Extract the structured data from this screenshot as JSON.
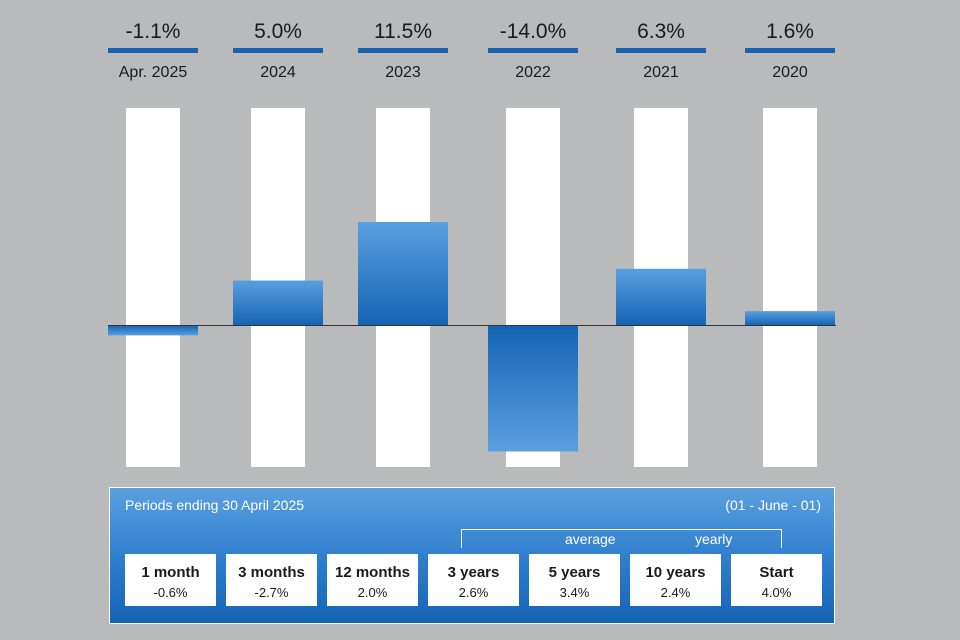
{
  "chart_data": {
    "type": "bar",
    "categories": [
      "Apr. 2025",
      "2024",
      "2023",
      "2022",
      "2021",
      "2020"
    ],
    "values": [
      -1.1,
      5.0,
      11.5,
      -14.0,
      6.3,
      1.6
    ],
    "value_labels": [
      "-1.1%",
      "5.0%",
      "11.5%",
      "-14.0%",
      "6.3%",
      "1.6%"
    ],
    "ylim": [
      -15,
      25
    ],
    "grid": false,
    "colors": {
      "bar_top": "#5aa0e0",
      "bar_bottom": "#1463b4",
      "underline": "#1a62b0",
      "column_bg": "#ffffff",
      "zero_line": "#333333"
    }
  },
  "periods_panel": {
    "title": "Periods ending 30 April 2025",
    "since_note": "(01 - June - 01)",
    "average_word": "average",
    "yearly_word": "yearly",
    "items": [
      {
        "label": "1 month",
        "value": "-0.6%"
      },
      {
        "label": "3 months",
        "value": "-2.7%"
      },
      {
        "label": "12 months",
        "value": "2.0%"
      },
      {
        "label": "3 years",
        "value": "2.6%"
      },
      {
        "label": "5 years",
        "value": "3.4%"
      },
      {
        "label": "10 years",
        "value": "2.4%"
      },
      {
        "label": "Start",
        "value": "4.0%"
      }
    ]
  }
}
